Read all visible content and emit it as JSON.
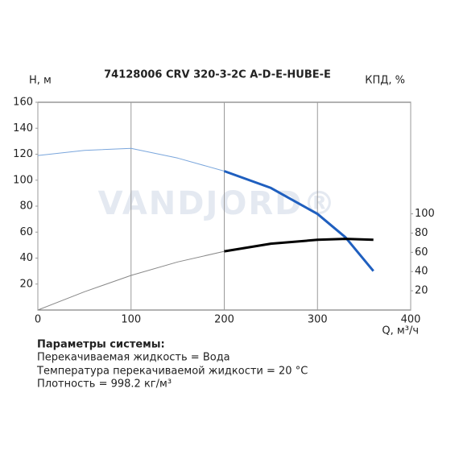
{
  "chart_data": {
    "type": "line",
    "title": "74128006 CRV 320-3-2C A-D-E-HUBE-E",
    "y_label": "H, м",
    "y2_label": "КПД, %",
    "x_label": "Q, м³/ч",
    "watermark": "VANDJORD®",
    "x": [
      0,
      50,
      100,
      150,
      200,
      250,
      300,
      330,
      360
    ],
    "series": [
      {
        "name": "H",
        "color": "#1f5fbf",
        "values": [
          119,
          123,
          124.5,
          117,
          107,
          94,
          74,
          56,
          30
        ]
      },
      {
        "name": "КПД",
        "color": "#000000",
        "axis": "y2",
        "values": [
          0,
          19,
          36,
          50,
          61,
          69,
          73,
          74,
          73
        ]
      }
    ],
    "xlim": [
      0,
      400
    ],
    "xticks": [
      0,
      100,
      200,
      300,
      400
    ],
    "ylim": [
      0,
      160
    ],
    "yticks": [
      20,
      40,
      60,
      80,
      100,
      120,
      140,
      160
    ],
    "y2lim": [
      0,
      216
    ],
    "y2ticks": [
      20,
      40,
      60,
      80,
      100
    ],
    "grid": true
  },
  "parameters": {
    "heading": "Параметры системы:",
    "lines": [
      "Перекачиваемая жидкость = Вода",
      "Температура перекачиваемой жидкости = 20 °C",
      "Плотность = 998.2 кг/м³"
    ]
  }
}
